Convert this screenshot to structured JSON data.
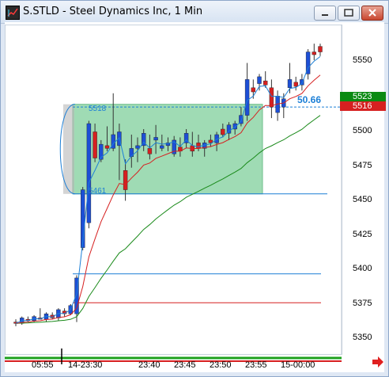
{
  "window": {
    "title": "S.STLD - Steel Dynamics Inc, 1 Min",
    "controls": [
      "minimize",
      "maximize",
      "close"
    ]
  },
  "chart_data": {
    "type": "candlestick",
    "symbol": "S.STLD",
    "interval": "1 Min",
    "y_ticks": [
      "5550",
      "5500",
      "5475",
      "5450",
      "5425",
      "5400",
      "5375",
      "5350"
    ],
    "x_ticks": [
      "05:55",
      "14-23:30",
      "23:40",
      "23:45",
      "23:50",
      "23:55",
      "15-00:00"
    ],
    "price_badges": [
      {
        "label": "5523",
        "color": "#0a8a12"
      },
      {
        "label": "5516",
        "color": "#d62020"
      }
    ],
    "box": {
      "top_label": "5518",
      "bottom_label": "5461",
      "value_label": "50.66",
      "color": "#9fdbb4"
    },
    "horizontal_lines": [
      {
        "value": 5453,
        "color": "#1c7fd6"
      },
      {
        "value": 5395,
        "color": "#1c7fd6"
      },
      {
        "value": 5374,
        "color": "#d62020"
      }
    ],
    "candles": [
      {
        "o": 5360,
        "h": 5362,
        "l": 5357,
        "c": 5359
      },
      {
        "o": 5359,
        "h": 5364,
        "l": 5358,
        "c": 5363
      },
      {
        "o": 5362,
        "h": 5364,
        "l": 5360,
        "c": 5361
      },
      {
        "o": 5361,
        "h": 5365,
        "l": 5360,
        "c": 5364
      },
      {
        "o": 5363,
        "h": 5370,
        "l": 5362,
        "c": 5362
      },
      {
        "o": 5362,
        "h": 5367,
        "l": 5360,
        "c": 5366
      },
      {
        "o": 5365,
        "h": 5367,
        "l": 5362,
        "c": 5363
      },
      {
        "o": 5363,
        "h": 5370,
        "l": 5361,
        "c": 5369
      },
      {
        "o": 5368,
        "h": 5370,
        "l": 5364,
        "c": 5366
      },
      {
        "o": 5366,
        "h": 5373,
        "l": 5365,
        "c": 5372
      },
      {
        "o": 5366,
        "h": 5394,
        "l": 5360,
        "c": 5392
      },
      {
        "o": 5414,
        "h": 5458,
        "l": 5412,
        "c": 5456
      },
      {
        "o": 5432,
        "h": 5506,
        "l": 5428,
        "c": 5504
      },
      {
        "o": 5498,
        "h": 5504,
        "l": 5476,
        "c": 5479
      },
      {
        "o": 5478,
        "h": 5492,
        "l": 5476,
        "c": 5489
      },
      {
        "o": 5488,
        "h": 5502,
        "l": 5484,
        "c": 5486
      },
      {
        "o": 5486,
        "h": 5526,
        "l": 5484,
        "c": 5496
      },
      {
        "o": 5488,
        "h": 5504,
        "l": 5463,
        "c": 5498
      },
      {
        "o": 5470,
        "h": 5478,
        "l": 5448,
        "c": 5456
      },
      {
        "o": 5480,
        "h": 5496,
        "l": 5472,
        "c": 5486
      },
      {
        "o": 5486,
        "h": 5494,
        "l": 5476,
        "c": 5488
      },
      {
        "o": 5488,
        "h": 5500,
        "l": 5484,
        "c": 5497
      },
      {
        "o": 5486,
        "h": 5496,
        "l": 5478,
        "c": 5482
      },
      {
        "o": 5492,
        "h": 5503,
        "l": 5482,
        "c": 5494
      },
      {
        "o": 5486,
        "h": 5496,
        "l": 5484,
        "c": 5488
      },
      {
        "o": 5488,
        "h": 5494,
        "l": 5484,
        "c": 5490
      },
      {
        "o": 5482,
        "h": 5495,
        "l": 5480,
        "c": 5492
      },
      {
        "o": 5487,
        "h": 5494,
        "l": 5480,
        "c": 5484
      },
      {
        "o": 5490,
        "h": 5500,
        "l": 5486,
        "c": 5497
      },
      {
        "o": 5488,
        "h": 5498,
        "l": 5480,
        "c": 5484
      },
      {
        "o": 5490,
        "h": 5496,
        "l": 5484,
        "c": 5486
      },
      {
        "o": 5486,
        "h": 5492,
        "l": 5480,
        "c": 5490
      },
      {
        "o": 5492,
        "h": 5496,
        "l": 5487,
        "c": 5490
      },
      {
        "o": 5490,
        "h": 5498,
        "l": 5484,
        "c": 5496
      },
      {
        "o": 5500,
        "h": 5504,
        "l": 5494,
        "c": 5496
      },
      {
        "o": 5497,
        "h": 5505,
        "l": 5492,
        "c": 5503
      },
      {
        "o": 5500,
        "h": 5506,
        "l": 5496,
        "c": 5504
      },
      {
        "o": 5504,
        "h": 5516,
        "l": 5502,
        "c": 5510
      },
      {
        "o": 5510,
        "h": 5548,
        "l": 5506,
        "c": 5536
      },
      {
        "o": 5530,
        "h": 5536,
        "l": 5522,
        "c": 5527
      },
      {
        "o": 5533,
        "h": 5540,
        "l": 5528,
        "c": 5538
      },
      {
        "o": 5535,
        "h": 5542,
        "l": 5530,
        "c": 5532
      },
      {
        "o": 5530,
        "h": 5536,
        "l": 5508,
        "c": 5516
      },
      {
        "o": 5512,
        "h": 5528,
        "l": 5506,
        "c": 5524
      },
      {
        "o": 5516,
        "h": 5526,
        "l": 5508,
        "c": 5522
      },
      {
        "o": 5530,
        "h": 5548,
        "l": 5526,
        "c": 5536
      },
      {
        "o": 5534,
        "h": 5538,
        "l": 5528,
        "c": 5531
      },
      {
        "o": 5532,
        "h": 5540,
        "l": 5528,
        "c": 5536
      },
      {
        "o": 5540,
        "h": 5558,
        "l": 5536,
        "c": 5556
      },
      {
        "o": 5556,
        "h": 5562,
        "l": 5550,
        "c": 5554
      },
      {
        "o": 5560,
        "h": 5562,
        "l": 5553,
        "c": 5556
      }
    ]
  }
}
